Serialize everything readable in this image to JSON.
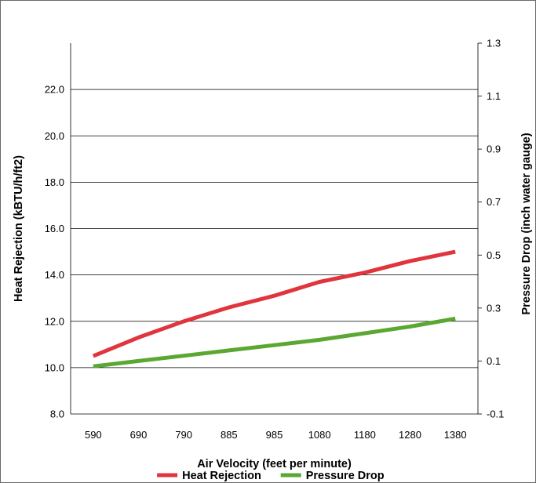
{
  "chart_data": {
    "type": "line",
    "title": "",
    "xlabel": "Air Velocity (feet per minute)",
    "ylabel": "Heat Rejection (kBTU/h/ft2)",
    "y2label": "Pressure Drop (inch water gauge)",
    "categories": [
      "590",
      "690",
      "790",
      "885",
      "985",
      "1080",
      "1180",
      "1280",
      "1380"
    ],
    "ylim": [
      8.0,
      24.0
    ],
    "y_ticks": [
      "8.0",
      "10.0",
      "12.0",
      "14.0",
      "16.0",
      "18.0",
      "20.0",
      "22.0"
    ],
    "y2lim": [
      -0.1,
      1.3
    ],
    "y2_ticks": [
      "-0.1",
      "0.1",
      "0.3",
      "0.5",
      "0.7",
      "0.9",
      "1.1",
      "1.3"
    ],
    "grid": "horizontal",
    "legend_position": "bottom",
    "series": [
      {
        "name": "Heat Rejection",
        "axis": "left",
        "color": "#e0353d",
        "values": [
          10.5,
          11.3,
          12.0,
          12.6,
          13.1,
          13.7,
          14.1,
          14.6,
          15.0
        ]
      },
      {
        "name": "Pressure Drop",
        "axis": "right",
        "color": "#5aa832",
        "values": [
          0.08,
          0.1,
          0.12,
          0.14,
          0.16,
          0.18,
          0.205,
          0.23,
          0.26
        ]
      }
    ]
  }
}
